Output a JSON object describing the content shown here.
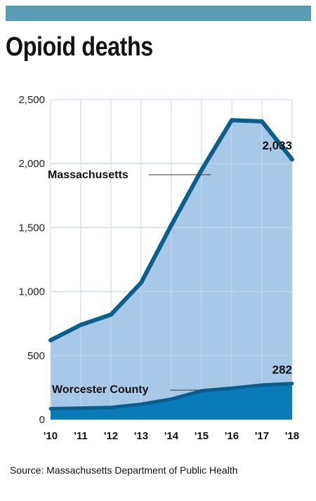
{
  "title": "Opioid deaths",
  "source": "Source: Massachusetts Department of Public Health",
  "colors": {
    "top_bar": "#5b9cb5",
    "ma_fill": "#a8c8e8",
    "ma_line": "#0a5f8c",
    "wc_fill": "#0a7ab8",
    "wc_line": "#0a5f8c",
    "grid": "#b8b8b8"
  },
  "chart_data": {
    "type": "area",
    "categories": [
      "'10",
      "'11",
      "'12",
      "'13",
      "'14",
      "'15",
      "'16",
      "'17",
      "'18"
    ],
    "ylim": [
      0,
      2500
    ],
    "yticks": [
      0,
      500,
      "1,000",
      "1,500",
      "2,000",
      "2,500"
    ],
    "ytick_values": [
      0,
      500,
      1000,
      1500,
      2000,
      2500
    ],
    "grid": true,
    "series": [
      {
        "name": "Massachusetts",
        "values": [
          620,
          740,
          820,
          1070,
          1520,
          1950,
          2340,
          2330,
          2033
        ],
        "end_label": "2,033"
      },
      {
        "name": "Worcester County",
        "values": [
          85,
          90,
          95,
          120,
          160,
          225,
          245,
          270,
          282
        ],
        "end_label": "282"
      }
    ]
  }
}
